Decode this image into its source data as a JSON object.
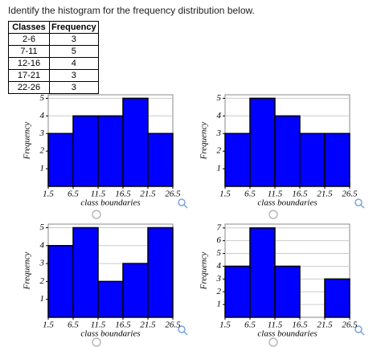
{
  "question": "Identify the histogram for the frequency distribution below.",
  "table": {
    "header": [
      "Classes",
      "Frequency"
    ],
    "rows": [
      [
        "2-6",
        "3"
      ],
      [
        "7-11",
        "5"
      ],
      [
        "12-16",
        "4"
      ],
      [
        "17-21",
        "3"
      ],
      [
        "22-26",
        "3"
      ]
    ]
  },
  "chart_data": [
    {
      "type": "histogram",
      "bins": [
        1.5,
        6.5,
        11.5,
        16.5,
        21.5,
        26.5
      ],
      "values": [
        3,
        4,
        4,
        5,
        3
      ],
      "color": "#0000ff",
      "xlabel": "class boundaries",
      "ylabel": "Frequency",
      "xlim": [
        1.5,
        26.5
      ],
      "xticks": [
        1.5,
        6.5,
        11.5,
        16.5,
        21.5,
        26.5
      ],
      "ylim": [
        0,
        5.2
      ],
      "yticks": [
        1,
        2,
        3,
        4,
        5
      ],
      "grid": true
    },
    {
      "type": "histogram",
      "bins": [
        1.5,
        6.5,
        11.5,
        16.5,
        21.5,
        26.5
      ],
      "values": [
        3,
        5,
        4,
        3,
        3
      ],
      "color": "#0000ff",
      "xlabel": "class boundaries",
      "ylabel": "Frequency",
      "xlim": [
        1.5,
        26.5
      ],
      "xticks": [
        1.5,
        6.5,
        11.5,
        16.5,
        21.5,
        26.5
      ],
      "ylim": [
        0,
        5.2
      ],
      "yticks": [
        1,
        2,
        3,
        4,
        5
      ],
      "grid": true
    },
    {
      "type": "histogram",
      "bins": [
        1.5,
        6.5,
        11.5,
        16.5,
        21.5,
        26.5
      ],
      "values": [
        4,
        5,
        2,
        3,
        5
      ],
      "color": "#0000ff",
      "xlabel": "class boundaries",
      "ylabel": "Frequency",
      "xlim": [
        1.5,
        26.5
      ],
      "xticks": [
        1.5,
        6.5,
        11.5,
        16.5,
        21.5,
        26.5
      ],
      "ylim": [
        0,
        5.2
      ],
      "yticks": [
        1,
        2,
        3,
        4,
        5
      ],
      "grid": true
    },
    {
      "type": "histogram",
      "bins": [
        1.5,
        6.5,
        11.5,
        16.5,
        21.5,
        26.5
      ],
      "values": [
        4,
        7,
        4,
        0,
        3
      ],
      "color": "#0000ff",
      "xlabel": "class boundaries",
      "ylabel": "Frequency",
      "xlim": [
        1.5,
        26.5
      ],
      "xticks": [
        1.5,
        6.5,
        11.5,
        16.5,
        21.5,
        26.5
      ],
      "ylim": [
        0,
        7.3
      ],
      "yticks": [
        1,
        2,
        3,
        4,
        5,
        6,
        7
      ],
      "grid": true
    }
  ]
}
